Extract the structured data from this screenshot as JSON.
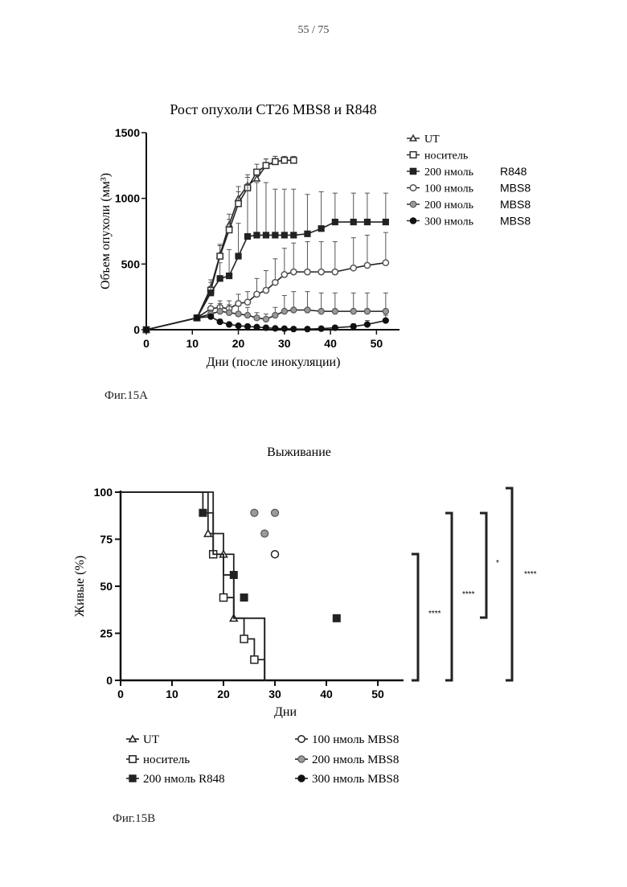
{
  "page_number": "55 / 75",
  "chart_data": [
    {
      "type": "line",
      "title": "Рост опухоли CT26 MBS8 и R848",
      "xlabel": "Дни (после инокуляции)",
      "ylabel": "Объем опухоли (мм³)",
      "xlim": [
        0,
        55
      ],
      "ylim": [
        0,
        1500
      ],
      "xticks": [
        "0",
        "10",
        "20",
        "30",
        "40",
        "50"
      ],
      "yticks": [
        "0",
        "500",
        "1000",
        "1500"
      ],
      "caption": "Фиг.15А",
      "series": [
        {
          "name": "UT",
          "label_left": "UT",
          "label_right": "",
          "marker": "triangle",
          "color": "#333333",
          "x": [
            0,
            11,
            14,
            16,
            18,
            20,
            22,
            24,
            26,
            28
          ],
          "y": [
            0,
            90,
            320,
            570,
            800,
            1000,
            1100,
            1150,
            1250,
            1280
          ],
          "err": [
            0,
            10,
            60,
            80,
            80,
            90,
            80,
            60,
            50,
            40
          ]
        },
        {
          "name": "носитель",
          "label_left": "носитель",
          "label_right": "",
          "marker": "square-open",
          "color": "#333333",
          "x": [
            0,
            11,
            14,
            16,
            18,
            20,
            22,
            24,
            26,
            28,
            30,
            32
          ],
          "y": [
            0,
            90,
            300,
            560,
            760,
            960,
            1080,
            1200,
            1250,
            1280,
            1290,
            1290
          ],
          "err": [
            0,
            10,
            60,
            80,
            80,
            90,
            80,
            60,
            50,
            40,
            30,
            30
          ]
        },
        {
          "name": "200 нмоль R848",
          "label_left": "200 нмоль",
          "label_right": "R848",
          "marker": "square-filled",
          "color": "#222222",
          "x": [
            0,
            11,
            14,
            16,
            18,
            20,
            22,
            24,
            26,
            28,
            30,
            32,
            35,
            38,
            41,
            45,
            48,
            52
          ],
          "y": [
            0,
            90,
            280,
            390,
            410,
            560,
            710,
            720,
            720,
            720,
            720,
            720,
            730,
            770,
            820,
            820,
            820,
            820
          ],
          "err": [
            0,
            10,
            50,
            120,
            200,
            250,
            400,
            400,
            400,
            350,
            350,
            350,
            300,
            280,
            220,
            220,
            220,
            220
          ]
        },
        {
          "name": "100 нмоль MBS8",
          "label_left": "100 нмоль",
          "label_right": "MBS8",
          "marker": "circle-open",
          "color": "#555555",
          "x": [
            0,
            11,
            14,
            16,
            18,
            20,
            22,
            24,
            26,
            28,
            30,
            32,
            35,
            38,
            41,
            45,
            48,
            52
          ],
          "y": [
            0,
            90,
            160,
            170,
            160,
            200,
            210,
            270,
            300,
            360,
            420,
            440,
            440,
            440,
            440,
            470,
            490,
            510
          ],
          "err": [
            0,
            10,
            40,
            50,
            60,
            70,
            80,
            120,
            150,
            180,
            200,
            220,
            230,
            230,
            230,
            230,
            230,
            230
          ]
        },
        {
          "name": "200 нмоль MBS8",
          "label_left": "200 нмоль",
          "label_right": "MBS8",
          "marker": "circle-gray",
          "color": "#8a8a8a",
          "x": [
            0,
            11,
            14,
            16,
            18,
            20,
            22,
            24,
            26,
            28,
            30,
            32,
            35,
            38,
            41,
            45,
            48,
            52
          ],
          "y": [
            0,
            90,
            120,
            140,
            130,
            120,
            110,
            90,
            80,
            110,
            140,
            150,
            150,
            140,
            140,
            140,
            140,
            140
          ],
          "err": [
            0,
            10,
            30,
            60,
            60,
            60,
            60,
            40,
            40,
            60,
            120,
            140,
            140,
            140,
            140,
            140,
            140,
            140
          ]
        },
        {
          "name": "300 нмоль MBS8",
          "label_left": "300 нмоль",
          "label_right": "MBS8",
          "marker": "circle-filled",
          "color": "#111111",
          "x": [
            0,
            11,
            14,
            16,
            18,
            20,
            22,
            24,
            26,
            28,
            30,
            32,
            35,
            38,
            41,
            45,
            48,
            52
          ],
          "y": [
            0,
            90,
            100,
            60,
            40,
            30,
            25,
            20,
            15,
            10,
            8,
            5,
            5,
            8,
            15,
            25,
            40,
            70
          ],
          "err": [
            0,
            10,
            20,
            20,
            15,
            10,
            10,
            8,
            6,
            5,
            4,
            3,
            3,
            5,
            10,
            20,
            30,
            40
          ]
        }
      ]
    },
    {
      "type": "line",
      "subtype": "survival-step",
      "title": "Выживание",
      "xlabel": "Дни",
      "ylabel": "Живые (%)",
      "xlim": [
        0,
        55
      ],
      "ylim": [
        0,
        100
      ],
      "xticks": [
        "0",
        "10",
        "20",
        "30",
        "40",
        "50"
      ],
      "yticks": [
        "0",
        "25",
        "50",
        "75",
        "100"
      ],
      "caption": "Фиг.15В",
      "significance_labels": [
        "****",
        "****",
        "*",
        "****"
      ],
      "series": [
        {
          "name": "UT",
          "marker": "triangle",
          "color": "#222222",
          "x": [
            0,
            17,
            17,
            20,
            20,
            22,
            22,
            28,
            28
          ],
          "y": [
            100,
            100,
            78,
            78,
            67,
            67,
            33,
            33,
            0
          ],
          "points_x": [
            17,
            20,
            22
          ],
          "points_y": [
            78,
            67,
            33
          ]
        },
        {
          "name": "носитель",
          "marker": "square-open",
          "color": "#222222",
          "x": [
            0,
            18,
            18,
            20,
            20,
            22,
            22,
            24,
            24,
            26,
            26,
            28,
            28
          ],
          "y": [
            100,
            100,
            67,
            67,
            44,
            44,
            33,
            33,
            22,
            22,
            11,
            11,
            0
          ],
          "points_x": [
            18,
            20,
            24,
            26
          ],
          "points_y": [
            67,
            44,
            22,
            11
          ]
        },
        {
          "name": "200 нмоль R848",
          "marker": "square-filled",
          "color": "#222222",
          "x": [
            0,
            16,
            16,
            18,
            18,
            20,
            20,
            22,
            22,
            28,
            28
          ],
          "y": [
            100,
            100,
            89,
            89,
            67,
            67,
            56,
            56,
            33,
            33,
            0
          ],
          "points_x": [
            16,
            22,
            24,
            42
          ],
          "points_y": [
            89,
            56,
            44,
            33
          ]
        },
        {
          "name": "100 нмоль MBS8",
          "marker": "circle-open",
          "color": "#222222",
          "x": [],
          "y": [],
          "points_x": [
            30
          ],
          "points_y": [
            67
          ]
        },
        {
          "name": "200 нмоль MBS8",
          "marker": "circle-gray",
          "color": "#8a8a8a",
          "x": [],
          "y": [],
          "points_x": [
            26,
            28,
            30
          ],
          "points_y": [
            89,
            78,
            89
          ]
        },
        {
          "name": "300 нмоль MBS8",
          "marker": "circle-filled",
          "color": "#111111",
          "x": [],
          "y": [],
          "points_x": [],
          "points_y": []
        }
      ]
    }
  ]
}
